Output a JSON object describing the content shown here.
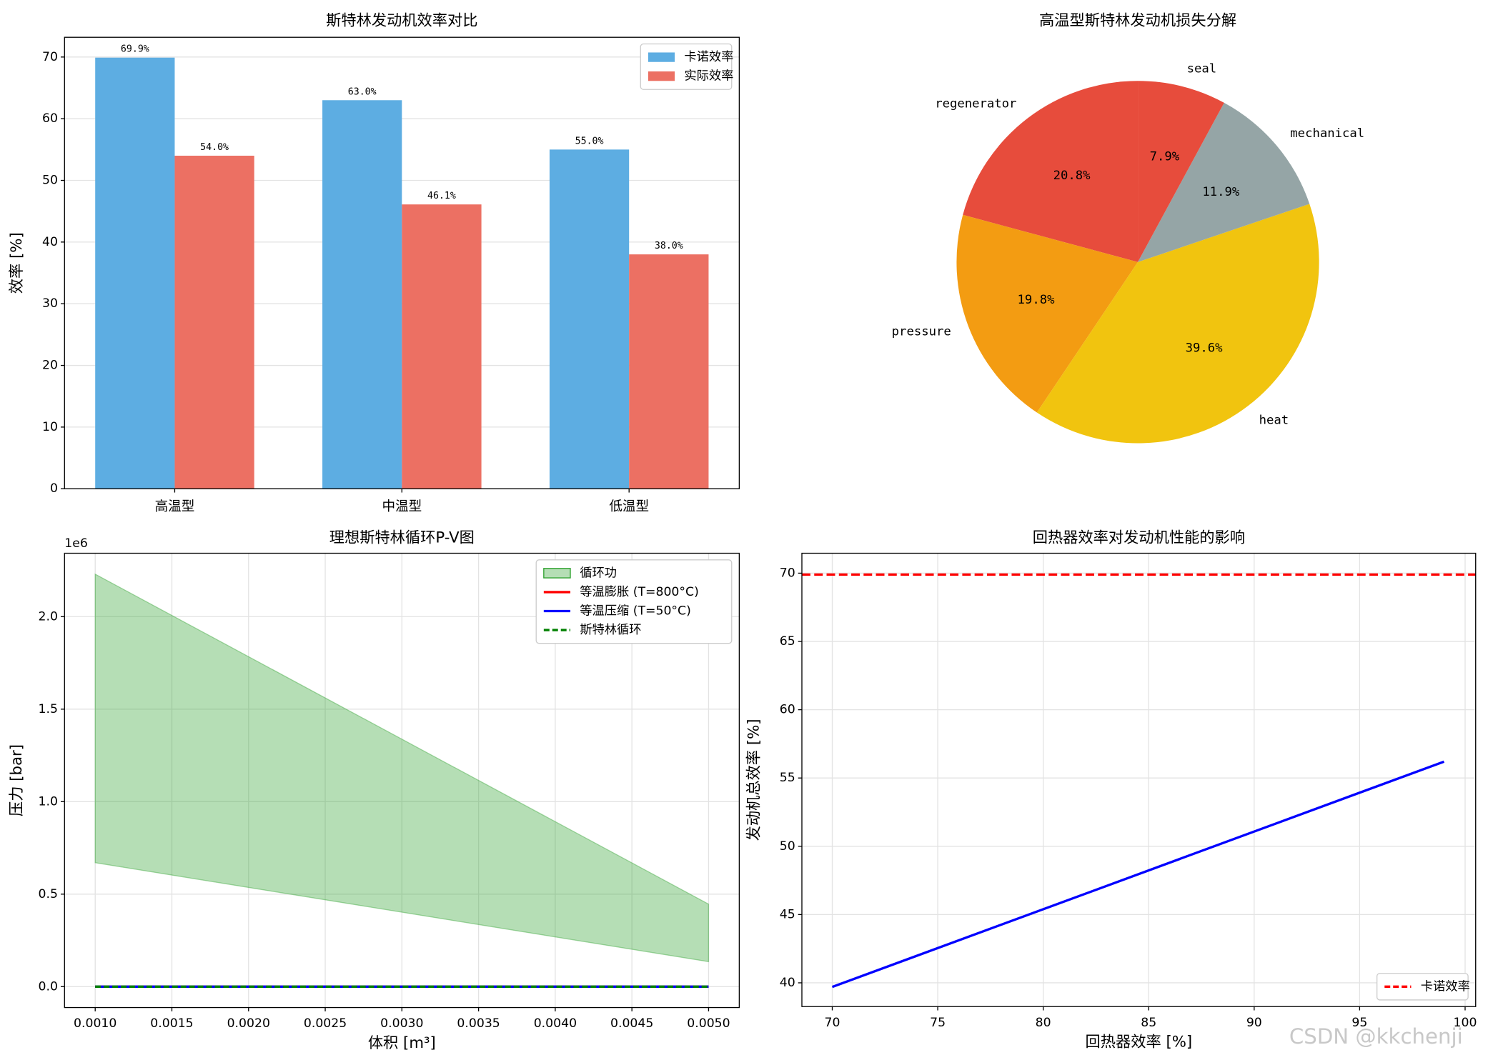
{
  "chart_data": [
    {
      "type": "bar",
      "title": "斯特林发动机效率对比",
      "y_label": "效率 [%]",
      "categories": [
        "高温型",
        "中温型",
        "低温型"
      ],
      "series": [
        {
          "name": "卡诺效率",
          "color": "#5dade2",
          "values": [
            69.9,
            63.0,
            55.0
          ],
          "value_labels": [
            "69.9%",
            "63.0%",
            "55.0%"
          ]
        },
        {
          "name": "实际效率",
          "color": "#ec7063",
          "values": [
            54.0,
            46.1,
            38.0
          ],
          "value_labels": [
            "54.0%",
            "46.1%",
            "38.0%"
          ]
        }
      ],
      "ylim": [
        0,
        73.2
      ],
      "yticks": [
        0,
        10,
        20,
        30,
        40,
        50,
        60,
        70
      ],
      "grid": true,
      "legend": "upper right"
    },
    {
      "type": "pie",
      "title": "高温型斯特林发动机损失分解",
      "labels": [
        "regenerator",
        "pressure",
        "heat",
        "mechanical",
        "seal"
      ],
      "values": [
        20.8,
        19.8,
        39.6,
        11.9,
        7.9
      ],
      "value_labels": [
        "20.8%",
        "19.8%",
        "39.6%",
        "11.9%",
        "7.9%"
      ],
      "colors": [
        "#e74c3c",
        "#f39c12",
        "#f1c40f",
        "#95a5a6",
        "#e74c3c"
      ],
      "startangle": 90
    },
    {
      "type": "area",
      "title": "理想斯特林循环P-V图",
      "x_label": "体积 [m³]",
      "y_label": "压力 [bar]",
      "y_offset_label": "1e6",
      "x": [
        0.001,
        0.005
      ],
      "fill": {
        "name": "循环功",
        "color": "#2ca02c",
        "upper": [
          2230000,
          446000
        ],
        "lower": [
          670000,
          135000
        ]
      },
      "series": [
        {
          "name": "等温膨胀 (T=800°C)",
          "color": "#ff0000",
          "values": [
            0,
            0
          ],
          "dashed": false
        },
        {
          "name": "等温压缩 (T=50°C)",
          "color": "#0000ff",
          "values": [
            0,
            0
          ],
          "dashed": false
        },
        {
          "name": "斯特林循环",
          "color": "#008000",
          "values": [
            0,
            0
          ],
          "dashed": true
        }
      ],
      "xlim": [
        0.0008,
        0.0052
      ],
      "xticks": [
        {
          "value": 0.001,
          "label": "0.0010"
        },
        {
          "value": 0.0015,
          "label": "0.0015"
        },
        {
          "value": 0.002,
          "label": "0.0020"
        },
        {
          "value": 0.0025,
          "label": "0.0025"
        },
        {
          "value": 0.003,
          "label": "0.0030"
        },
        {
          "value": 0.0035,
          "label": "0.0035"
        },
        {
          "value": 0.004,
          "label": "0.0040"
        },
        {
          "value": 0.0045,
          "label": "0.0045"
        },
        {
          "value": 0.005,
          "label": "0.0050"
        }
      ],
      "ylim": [
        -113000,
        2343000
      ],
      "yticks": [
        {
          "value": 0,
          "label": "0.0"
        },
        {
          "value": 500000,
          "label": "0.5"
        },
        {
          "value": 1000000,
          "label": "1.0"
        },
        {
          "value": 1500000,
          "label": "1.5"
        },
        {
          "value": 2000000,
          "label": "2.0"
        }
      ],
      "grid": true,
      "legend": "upper right"
    },
    {
      "type": "line",
      "title": "回热器效率对发动机性能的影响",
      "x_label": "回热器效率 [%]",
      "y_label": "发动机总效率 [%]",
      "x": [
        70,
        99
      ],
      "values": [
        39.7,
        56.2
      ],
      "color": "#0000ff",
      "hline": {
        "name": "卡诺效率",
        "value": 69.9,
        "color": "#ff0000"
      },
      "xlim": [
        68.56,
        100.5
      ],
      "xticks": [
        70,
        75,
        80,
        85,
        90,
        95,
        100
      ],
      "ylim": [
        38.26,
        71.46
      ],
      "yticks": [
        40,
        45,
        50,
        55,
        60,
        65,
        70
      ],
      "grid": true,
      "legend": "lower right"
    }
  ],
  "watermark": "CSDN @kkchenji"
}
